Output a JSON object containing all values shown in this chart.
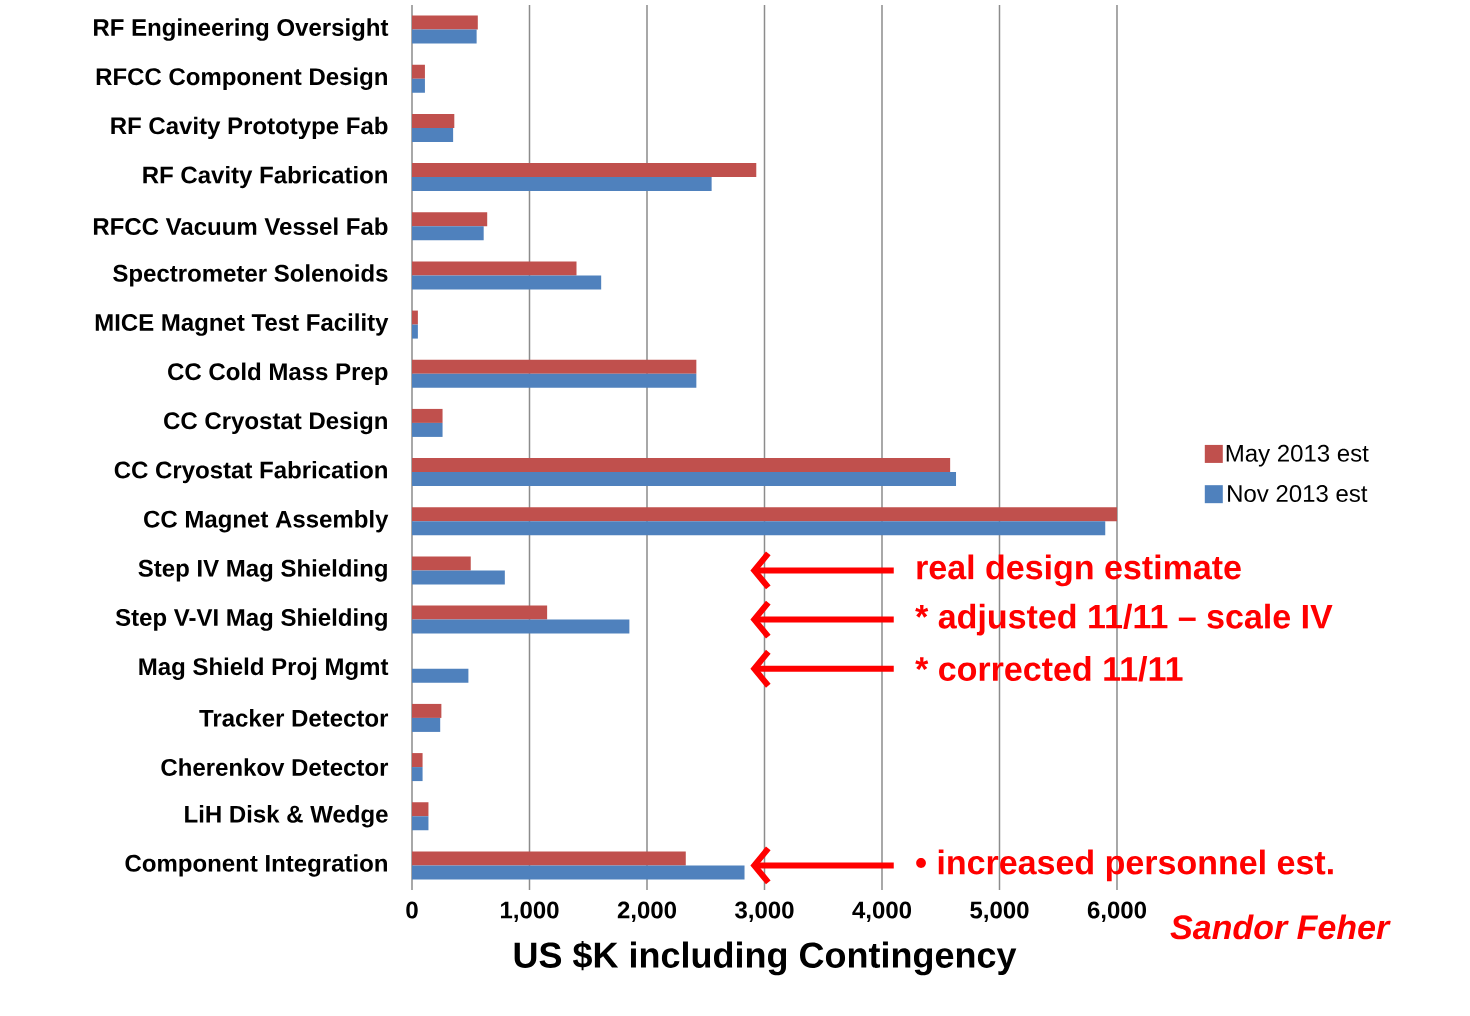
{
  "chart_data": {
    "type": "bar",
    "orientation": "horizontal",
    "xlabel": "US $K including Contingency",
    "categories": [
      "RF Engineering Oversight",
      "RFCC Component Design",
      "RF Cavity Prototype Fab",
      "RF Cavity Fabrication",
      "RFCC Vacuum Vessel Fab",
      "Spectrometer Solenoids",
      "MICE Magnet Test Facility",
      "CC Cold Mass Prep",
      "CC Cryostat Design",
      "CC Cryostat Fabrication",
      "CC Magnet Assembly",
      "Step IV Mag Shielding",
      "Step V-VI Mag Shielding",
      "Mag Shield Proj Mgmt",
      "Tracker Detector",
      "Cherenkov Detector",
      "LiH Disk & Wedge",
      "Component Integration"
    ],
    "series": [
      {
        "name": "May 2013 est",
        "color": "#c0504d",
        "values": [
          560,
          110,
          360,
          2930,
          640,
          1400,
          50,
          2420,
          260,
          4580,
          6000,
          500,
          1150,
          null,
          250,
          90,
          140,
          2330
        ]
      },
      {
        "name": "Nov 2013 est",
        "color": "#4f81bd",
        "values": [
          550,
          110,
          350,
          2550,
          610,
          1610,
          50,
          2420,
          260,
          4630,
          5900,
          790,
          1850,
          480,
          240,
          90,
          140,
          2830
        ]
      }
    ],
    "xlim": [
      0,
      6000
    ],
    "xticks": [
      0,
      {
        "value": 1000,
        "label": "1,000"
      },
      {
        "value": 2000,
        "label": "2,000"
      },
      {
        "value": 3000,
        "label": "3,000"
      },
      {
        "value": 4000,
        "label": "4,000"
      },
      {
        "value": 5000,
        "label": "5,000"
      },
      {
        "value": 6000,
        "label": "6,000"
      }
    ],
    "grid": "x",
    "legend": "right",
    "annotations": [
      "real design estimate",
      "* adjusted 11/11 – scale IV",
      "* corrected 11/11",
      "•   increased personnel est.",
      "Sandor Feher"
    ]
  }
}
